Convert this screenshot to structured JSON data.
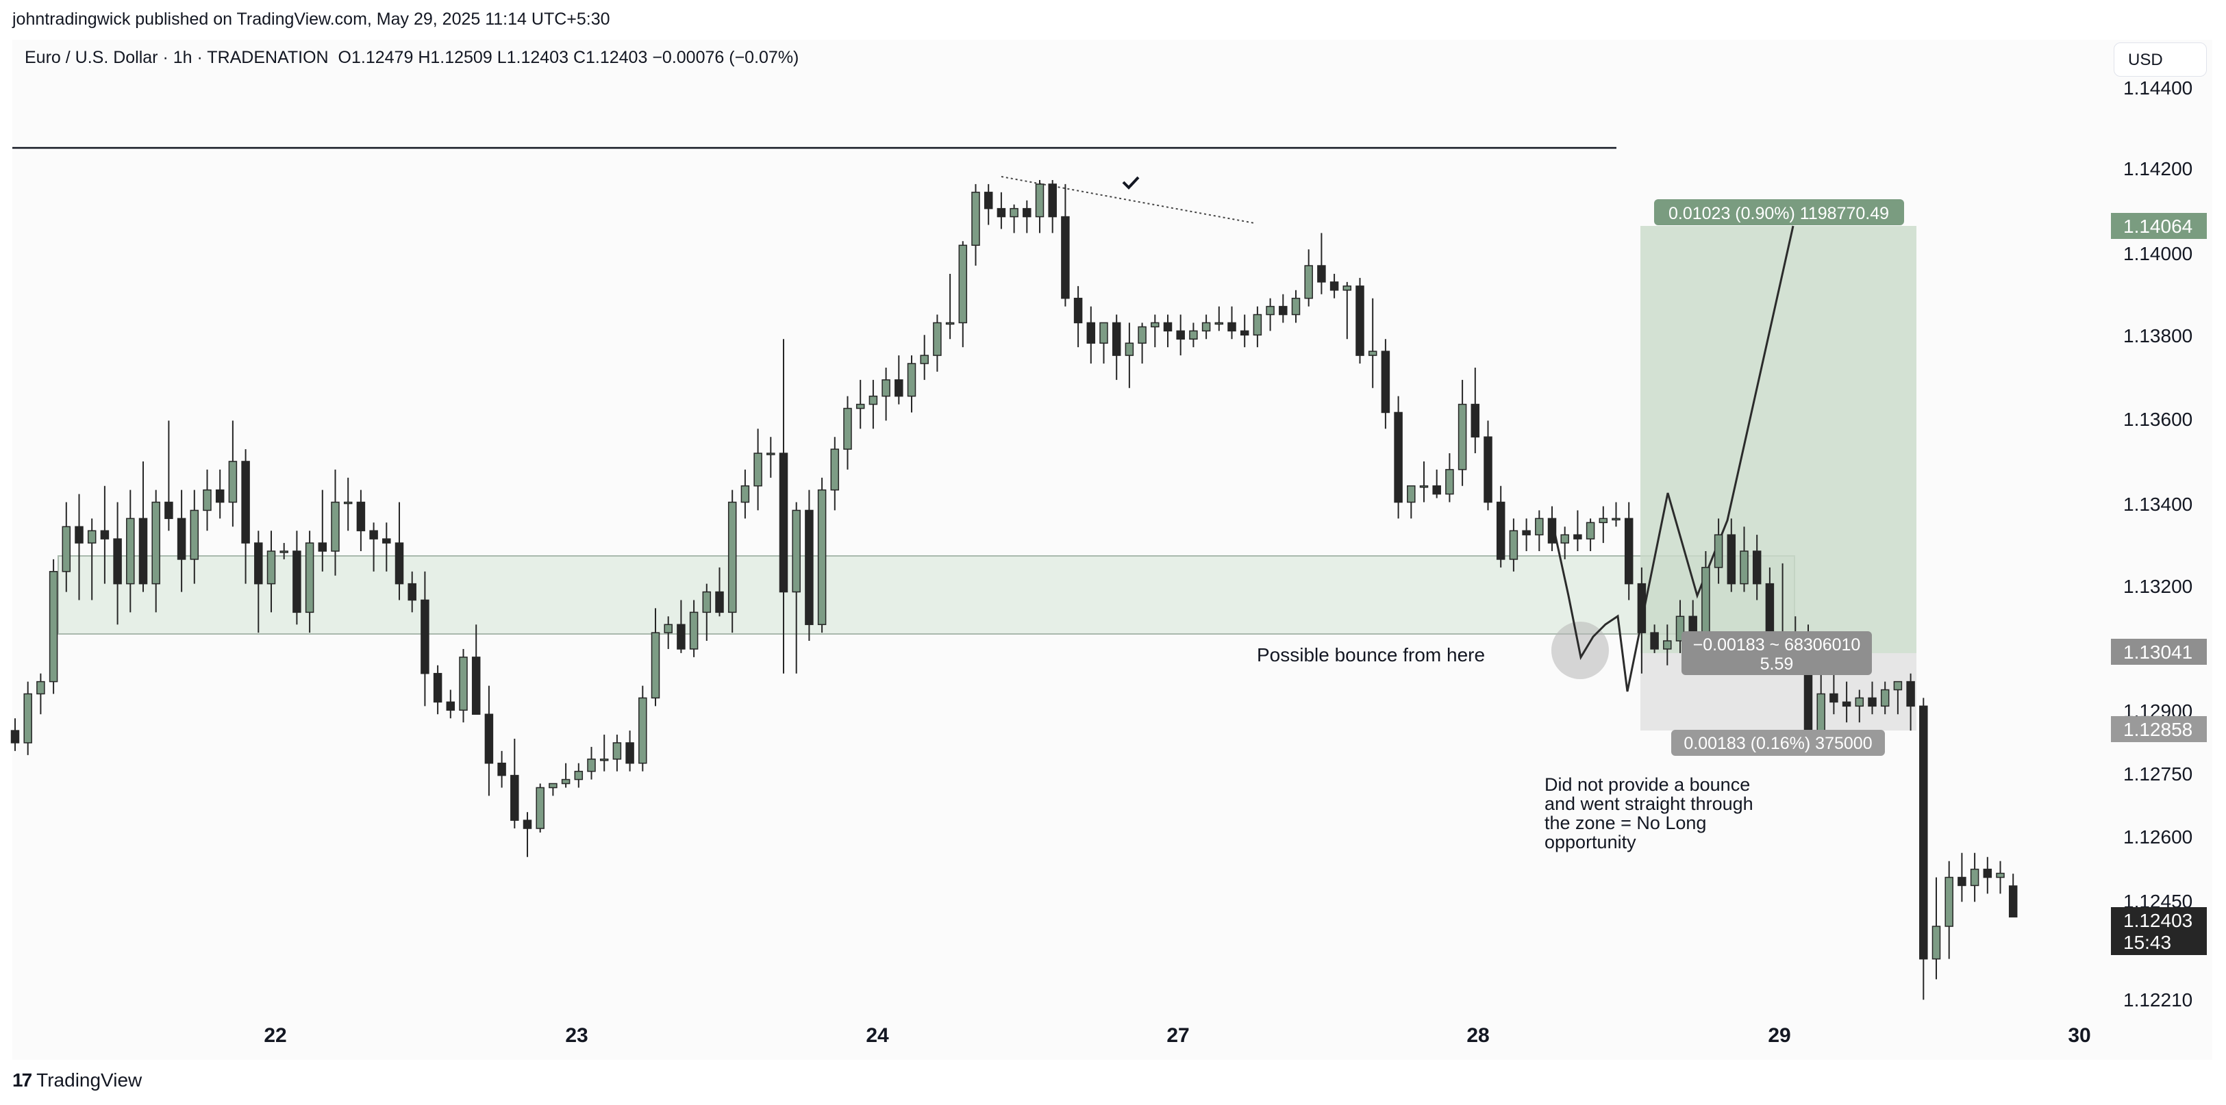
{
  "publisher": "johntradingwick published on TradingView.com, May 29, 2025 11:14 UTC+5:30",
  "symbol": {
    "name": "Euro / U.S. Dollar · 1h · TRADENATION",
    "open": "O1.12479",
    "high": "H1.12509",
    "low": "L1.12403",
    "close": "C1.12403",
    "change": "−0.00076 (−0.07%)"
  },
  "currency_button": "USD",
  "brand": "TradingView",
  "colors": {
    "bull": "#7d9c85",
    "bear": "#262626",
    "zone": "#e6efe7",
    "target": "#c9dac9",
    "stop": "#e3e3e3",
    "label": "#7a9c80",
    "last_price": "#262626"
  },
  "chart_data": {
    "type": "candlestick",
    "interval": "1h",
    "ylim": [
      1.1215,
      1.1445
    ],
    "y_ticks": [
      "1.14400",
      "1.14200",
      "1.14000",
      "1.13800",
      "1.13600",
      "1.13400",
      "1.13200",
      "1.12900",
      "1.12750",
      "1.12600",
      "1.12450",
      "1.12210"
    ],
    "x_ticks": [
      "22",
      "23",
      "24",
      "27",
      "28",
      "29",
      "30"
    ],
    "price_labels": [
      {
        "value": "1.14064",
        "kind": "target"
      },
      {
        "value": "1.13041",
        "kind": "entry"
      },
      {
        "value": "1.12858",
        "kind": "stop"
      },
      {
        "value": "1.12403",
        "kind": "last",
        "countdown": "15:43"
      }
    ],
    "annotations": [
      "Possible bounce from here",
      "Did not provide a bounce",
      "and went straight through",
      "the zone = No Long",
      "opportunity"
    ],
    "position_labels": {
      "target": "0.01023 (0.90%) 1198770.49",
      "middle_1": "−0.00183 ~ 68306010",
      "middle_2": "5.59",
      "stop": "0.00183 (0.16%) 375000"
    },
    "levels": {
      "resistance_line": 1.1427,
      "zone_top": 1.1327,
      "zone_bottom": 1.1308,
      "long_entry": 1.13041,
      "long_target": 1.14064,
      "long_stop": 1.12858
    },
    "candles": [
      [
        1.1286,
        1.1289,
        1.1281,
        1.1283
      ],
      [
        1.1283,
        1.1298,
        1.128,
        1.1295
      ],
      [
        1.1295,
        1.13,
        1.129,
        1.1298
      ],
      [
        1.1298,
        1.1328,
        1.1295,
        1.1325
      ],
      [
        1.1325,
        1.1342,
        1.132,
        1.1336
      ],
      [
        1.1336,
        1.1344,
        1.1318,
        1.1332
      ],
      [
        1.1332,
        1.1338,
        1.1318,
        1.1335
      ],
      [
        1.1335,
        1.1346,
        1.1322,
        1.1333
      ],
      [
        1.1333,
        1.1342,
        1.1312,
        1.1322
      ],
      [
        1.1322,
        1.1345,
        1.1315,
        1.1338
      ],
      [
        1.1338,
        1.1352,
        1.132,
        1.1322
      ],
      [
        1.1322,
        1.1345,
        1.1315,
        1.1342
      ],
      [
        1.1342,
        1.1362,
        1.1335,
        1.1338
      ],
      [
        1.1338,
        1.1345,
        1.132,
        1.1328
      ],
      [
        1.1328,
        1.1345,
        1.1322,
        1.134
      ],
      [
        1.134,
        1.135,
        1.1335,
        1.1345
      ],
      [
        1.1345,
        1.135,
        1.1338,
        1.1342
      ],
      [
        1.1342,
        1.1362,
        1.1336,
        1.1352
      ],
      [
        1.1352,
        1.1355,
        1.1322,
        1.1332
      ],
      [
        1.1332,
        1.1335,
        1.131,
        1.1322
      ],
      [
        1.1322,
        1.1335,
        1.1315,
        1.133
      ],
      [
        1.133,
        1.1332,
        1.1328,
        1.133
      ],
      [
        1.133,
        1.1335,
        1.1312,
        1.1315
      ],
      [
        1.1315,
        1.1335,
        1.131,
        1.1332
      ],
      [
        1.1332,
        1.1345,
        1.1325,
        1.133
      ],
      [
        1.133,
        1.135,
        1.1324,
        1.1342
      ],
      [
        1.1342,
        1.1348,
        1.1335,
        1.1342
      ],
      [
        1.1342,
        1.1345,
        1.133,
        1.1335
      ],
      [
        1.1335,
        1.1337,
        1.1325,
        1.1333
      ],
      [
        1.1333,
        1.1337,
        1.1325,
        1.1332
      ],
      [
        1.1332,
        1.1342,
        1.1318,
        1.1322
      ],
      [
        1.1322,
        1.1325,
        1.1315,
        1.1318
      ],
      [
        1.1318,
        1.1325,
        1.1292,
        1.13
      ],
      [
        1.13,
        1.1302,
        1.129,
        1.1293
      ],
      [
        1.1293,
        1.1296,
        1.1289,
        1.1291
      ],
      [
        1.1291,
        1.1306,
        1.1288,
        1.1304
      ],
      [
        1.1304,
        1.1312,
        1.129,
        1.129
      ],
      [
        1.129,
        1.1297,
        1.127,
        1.1278
      ],
      [
        1.1278,
        1.1281,
        1.1272,
        1.1275
      ],
      [
        1.1275,
        1.1284,
        1.1262,
        1.1264
      ],
      [
        1.1264,
        1.1266,
        1.1255,
        1.1262
      ],
      [
        1.1262,
        1.1273,
        1.1261,
        1.1272
      ],
      [
        1.1272,
        1.1273,
        1.127,
        1.1273
      ],
      [
        1.1273,
        1.1278,
        1.1272,
        1.1274
      ],
      [
        1.1274,
        1.1278,
        1.1272,
        1.1276
      ],
      [
        1.1276,
        1.1282,
        1.1274,
        1.1279
      ],
      [
        1.1279,
        1.1285,
        1.1276,
        1.1279
      ],
      [
        1.1279,
        1.1285,
        1.1276,
        1.1283
      ],
      [
        1.1283,
        1.1286,
        1.1276,
        1.1278
      ],
      [
        1.1278,
        1.1297,
        1.1276,
        1.1294
      ],
      [
        1.1294,
        1.1316,
        1.1292,
        1.131
      ],
      [
        1.131,
        1.1314,
        1.1306,
        1.1312
      ],
      [
        1.1312,
        1.1318,
        1.1305,
        1.1306
      ],
      [
        1.1306,
        1.1318,
        1.1304,
        1.1315
      ],
      [
        1.1315,
        1.1322,
        1.1308,
        1.132
      ],
      [
        1.132,
        1.1326,
        1.1314,
        1.1315
      ],
      [
        1.1315,
        1.1345,
        1.131,
        1.1342
      ],
      [
        1.1342,
        1.135,
        1.1338,
        1.1346
      ],
      [
        1.1346,
        1.136,
        1.134,
        1.1354
      ],
      [
        1.1354,
        1.1358,
        1.1348,
        1.1354
      ],
      [
        1.1354,
        1.1382,
        1.13,
        1.132
      ],
      [
        1.132,
        1.1342,
        1.13,
        1.134
      ],
      [
        1.134,
        1.1345,
        1.1308,
        1.1312
      ],
      [
        1.1312,
        1.1348,
        1.131,
        1.1345
      ],
      [
        1.1345,
        1.1358,
        1.134,
        1.1355
      ],
      [
        1.1355,
        1.1368,
        1.135,
        1.1365
      ],
      [
        1.1365,
        1.1372,
        1.136,
        1.1366
      ],
      [
        1.1366,
        1.1372,
        1.136,
        1.1368
      ],
      [
        1.1368,
        1.1375,
        1.1362,
        1.1372
      ],
      [
        1.1372,
        1.1378,
        1.1366,
        1.1368
      ],
      [
        1.1368,
        1.1378,
        1.1364,
        1.1376
      ],
      [
        1.1376,
        1.1383,
        1.1372,
        1.1378
      ],
      [
        1.1378,
        1.1388,
        1.1374,
        1.1386
      ],
      [
        1.1386,
        1.1398,
        1.1382,
        1.1386
      ],
      [
        1.1386,
        1.1406,
        1.138,
        1.1405
      ],
      [
        1.1405,
        1.142,
        1.14,
        1.1418
      ],
      [
        1.1418,
        1.142,
        1.141,
        1.1414
      ],
      [
        1.1414,
        1.1418,
        1.1409,
        1.1412
      ],
      [
        1.1412,
        1.1415,
        1.1408,
        1.1414
      ],
      [
        1.1414,
        1.1416,
        1.1408,
        1.1412
      ],
      [
        1.1412,
        1.1421,
        1.1408,
        1.142
      ],
      [
        1.142,
        1.1421,
        1.1408,
        1.1412
      ],
      [
        1.1412,
        1.142,
        1.139,
        1.1392
      ],
      [
        1.1392,
        1.1395,
        1.138,
        1.1386
      ],
      [
        1.1386,
        1.139,
        1.1376,
        1.1381
      ],
      [
        1.1381,
        1.1386,
        1.1376,
        1.1386
      ],
      [
        1.1386,
        1.1388,
        1.1372,
        1.1378
      ],
      [
        1.1378,
        1.1386,
        1.137,
        1.1381
      ],
      [
        1.1381,
        1.1386,
        1.1376,
        1.1385
      ],
      [
        1.1385,
        1.1388,
        1.138,
        1.1386
      ],
      [
        1.1386,
        1.1388,
        1.138,
        1.1384
      ],
      [
        1.1384,
        1.1388,
        1.1378,
        1.1382
      ],
      [
        1.1382,
        1.1386,
        1.138,
        1.1384
      ],
      [
        1.1384,
        1.1388,
        1.1382,
        1.1386
      ],
      [
        1.1386,
        1.139,
        1.1384,
        1.1386
      ],
      [
        1.1386,
        1.139,
        1.1382,
        1.1384
      ],
      [
        1.1384,
        1.1388,
        1.138,
        1.1383
      ],
      [
        1.1383,
        1.139,
        1.138,
        1.1388
      ],
      [
        1.1388,
        1.1392,
        1.1384,
        1.139
      ],
      [
        1.139,
        1.1393,
        1.1386,
        1.1388
      ],
      [
        1.1388,
        1.1394,
        1.1386,
        1.1392
      ],
      [
        1.1392,
        1.1404,
        1.139,
        1.14
      ],
      [
        1.14,
        1.1408,
        1.1393,
        1.1396
      ],
      [
        1.1396,
        1.1398,
        1.1392,
        1.1394
      ],
      [
        1.1394,
        1.1396,
        1.1382,
        1.1395
      ],
      [
        1.1395,
        1.1397,
        1.1376,
        1.1378
      ],
      [
        1.1378,
        1.1392,
        1.137,
        1.1379
      ],
      [
        1.1379,
        1.1382,
        1.136,
        1.1364
      ],
      [
        1.1364,
        1.1368,
        1.1338,
        1.1342
      ],
      [
        1.1342,
        1.1346,
        1.1338,
        1.1346
      ],
      [
        1.1346,
        1.1352,
        1.1342,
        1.1346
      ],
      [
        1.1346,
        1.135,
        1.1343,
        1.1344
      ],
      [
        1.1344,
        1.1354,
        1.1342,
        1.135
      ],
      [
        1.135,
        1.1372,
        1.1346,
        1.1366
      ],
      [
        1.1366,
        1.1375,
        1.1354,
        1.1358
      ],
      [
        1.1358,
        1.1362,
        1.134,
        1.1342
      ],
      [
        1.1342,
        1.1346,
        1.1326,
        1.1328
      ],
      [
        1.1328,
        1.1338,
        1.1325,
        1.1335
      ],
      [
        1.1335,
        1.1338,
        1.133,
        1.1334
      ],
      [
        1.1334,
        1.134,
        1.133,
        1.1338
      ],
      [
        1.1338,
        1.1341,
        1.133,
        1.1332
      ],
      [
        1.1332,
        1.1336,
        1.1328,
        1.1334
      ],
      [
        1.1334,
        1.134,
        1.133,
        1.1333
      ],
      [
        1.1333,
        1.1338,
        1.133,
        1.1337
      ],
      [
        1.1337,
        1.1341,
        1.1332,
        1.1338
      ],
      [
        1.1338,
        1.1342,
        1.1336,
        1.1338
      ],
      [
        1.1338,
        1.1342,
        1.1318,
        1.1322
      ],
      [
        1.1322,
        1.1326,
        1.13,
        1.131
      ],
      [
        1.131,
        1.1312,
        1.1305,
        1.1306
      ],
      [
        1.1306,
        1.1312,
        1.1302,
        1.1308
      ],
      [
        1.1308,
        1.1318,
        1.1305,
        1.1314
      ],
      [
        1.1314,
        1.1318,
        1.13,
        1.1302
      ],
      [
        1.1302,
        1.133,
        1.13,
        1.1326
      ],
      [
        1.1326,
        1.1338,
        1.1322,
        1.1334
      ],
      [
        1.1334,
        1.1338,
        1.132,
        1.1322
      ],
      [
        1.1322,
        1.1336,
        1.132,
        1.133
      ],
      [
        1.133,
        1.1334,
        1.1318,
        1.1322
      ],
      [
        1.1322,
        1.1326,
        1.1308,
        1.131
      ],
      [
        1.131,
        1.1327,
        1.13,
        1.1308
      ],
      [
        1.1308,
        1.1314,
        1.1302,
        1.1306
      ],
      [
        1.1306,
        1.1312,
        1.1282,
        1.1284
      ],
      [
        1.1284,
        1.13,
        1.1282,
        1.1295
      ],
      [
        1.1295,
        1.13,
        1.129,
        1.1293
      ],
      [
        1.1293,
        1.1298,
        1.1288,
        1.1292
      ],
      [
        1.1292,
        1.1296,
        1.1288,
        1.1294
      ],
      [
        1.1294,
        1.1298,
        1.129,
        1.1292
      ],
      [
        1.1292,
        1.1298,
        1.129,
        1.1296
      ],
      [
        1.1296,
        1.1298,
        1.129,
        1.1298
      ],
      [
        1.1298,
        1.13,
        1.1286,
        1.1292
      ],
      [
        1.1292,
        1.1294,
        1.122,
        1.123
      ],
      [
        1.123,
        1.125,
        1.1225,
        1.1238
      ],
      [
        1.1238,
        1.1254,
        1.123,
        1.125
      ],
      [
        1.125,
        1.1256,
        1.1244,
        1.1248
      ],
      [
        1.1248,
        1.1256,
        1.1244,
        1.1252
      ],
      [
        1.1252,
        1.1255,
        1.1246,
        1.125
      ],
      [
        1.125,
        1.1254,
        1.1246,
        1.1251
      ],
      [
        1.12479,
        1.12509,
        1.12403,
        1.12403
      ]
    ]
  }
}
